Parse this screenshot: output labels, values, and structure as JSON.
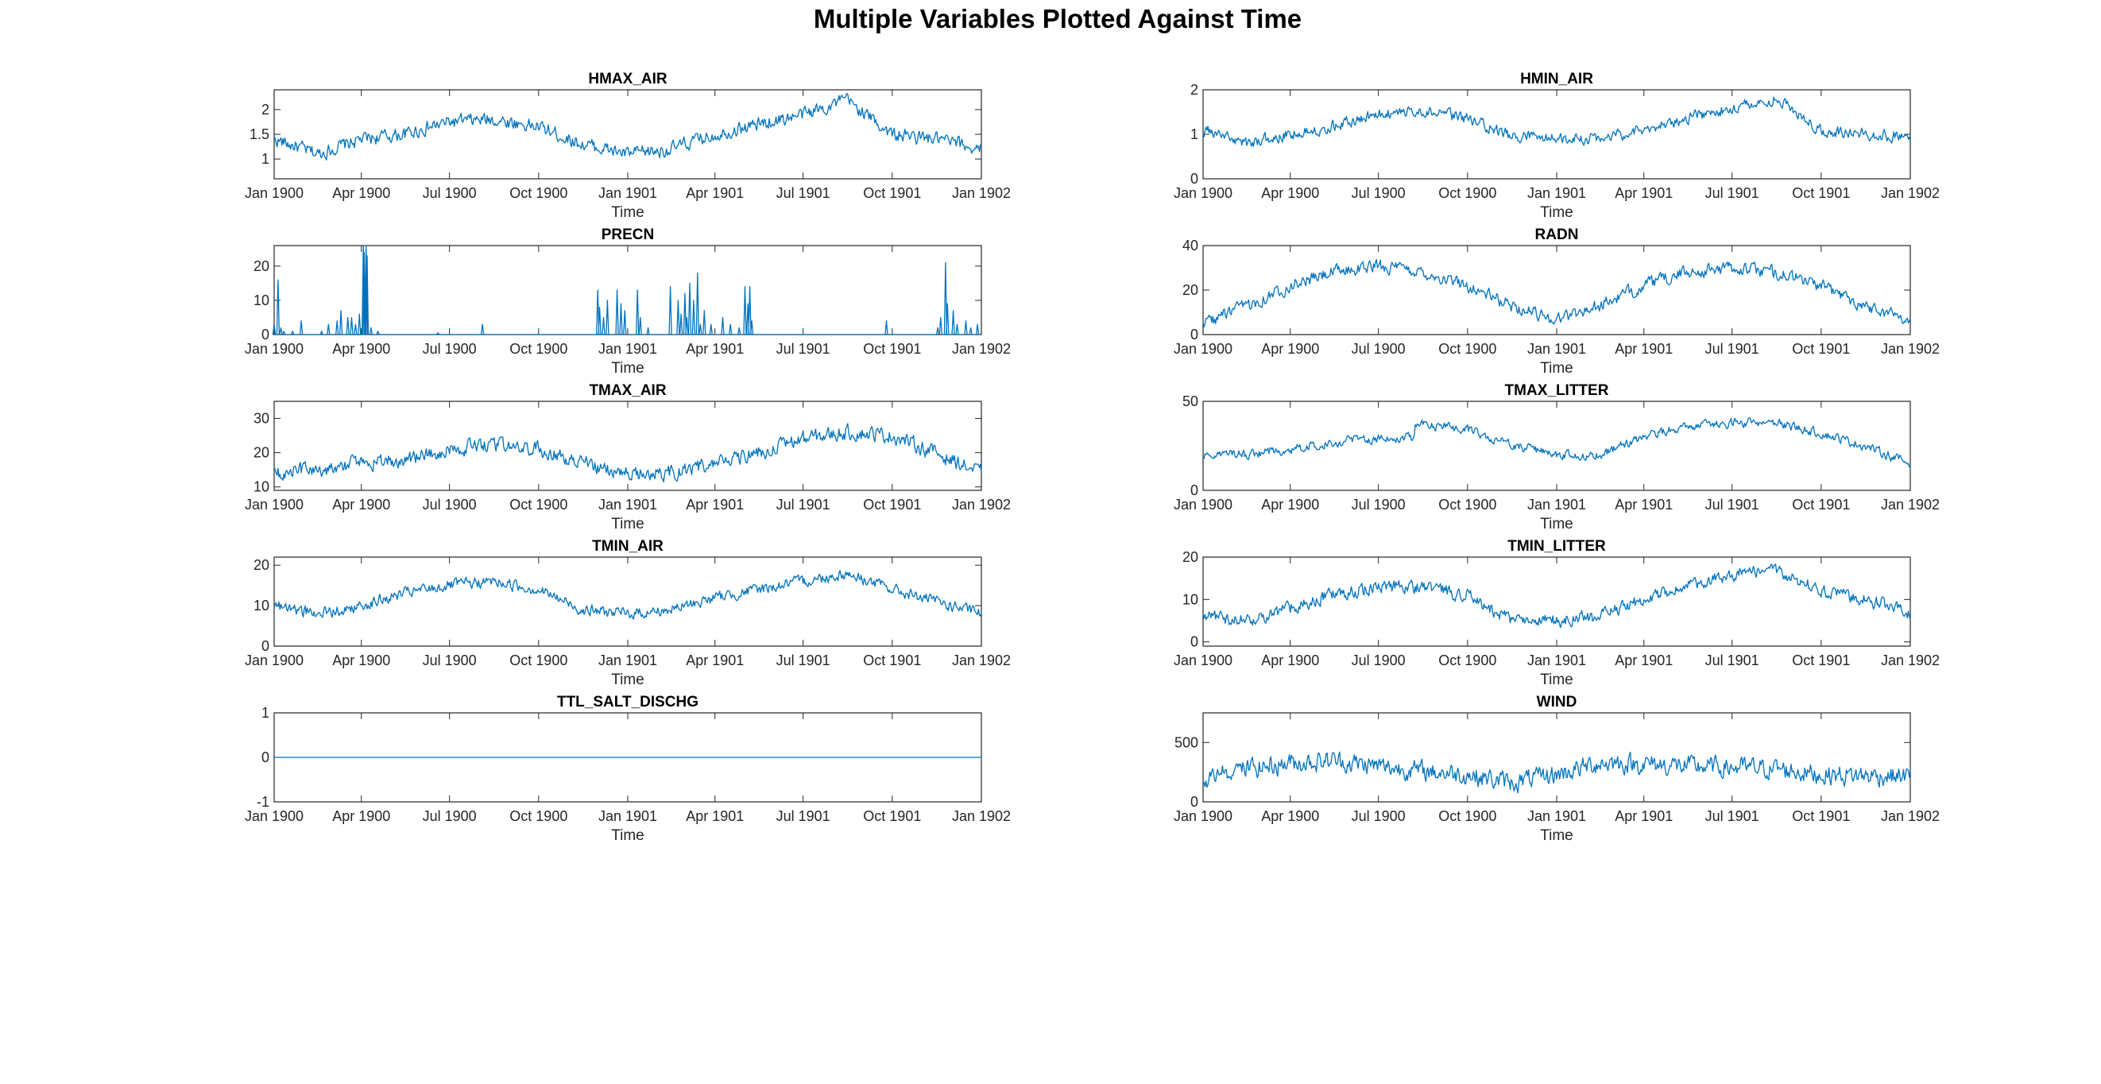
{
  "figure": {
    "title": "Multiple Variables Plotted Against Time",
    "line_color": "#0072BD"
  },
  "chart_data": [
    {
      "type": "line",
      "title": "HMAX_AIR",
      "xlabel": "Time",
      "ylabel": "",
      "x_range": [
        "1900-01-01",
        "1902-01-01"
      ],
      "x_ticks": [
        "Jan 1900",
        "Apr 1900",
        "Jul 1900",
        "Oct 1900",
        "Jan 1901",
        "Apr 1901",
        "Jul 1901",
        "Oct 1901",
        "Jan 1902"
      ],
      "ylim": [
        0.6,
        2.4
      ],
      "y_ticks": [
        1,
        1.5,
        2
      ],
      "y_tick_labels": [
        "1",
        "1.5",
        "2"
      ],
      "grid": false,
      "series": [
        {
          "x_dates": [
            "1900-01-01",
            "1900-02-15",
            "1900-04-01",
            "1900-05-15",
            "1900-07-01",
            "1900-08-15",
            "1900-10-01",
            "1900-11-15",
            "1901-01-01",
            "1901-02-15",
            "1901-04-01",
            "1901-05-15",
            "1901-07-01",
            "1901-08-15",
            "1901-10-01",
            "1901-11-15",
            "1902-01-01"
          ],
          "y": [
            1.4,
            1.1,
            1.4,
            1.5,
            1.75,
            1.8,
            1.65,
            1.3,
            1.1,
            1.2,
            1.5,
            1.7,
            1.9,
            2.2,
            1.5,
            1.4,
            1.2
          ],
          "noise": 0.22
        }
      ]
    },
    {
      "type": "line",
      "title": "HMIN_AIR",
      "xlabel": "Time",
      "ylabel": "",
      "x_range": [
        "1900-01-01",
        "1902-01-01"
      ],
      "x_ticks": [
        "Jan 1900",
        "Apr 1900",
        "Jul 1900",
        "Oct 1900",
        "Jan 1901",
        "Apr 1901",
        "Jul 1901",
        "Oct 1901",
        "Jan 1902"
      ],
      "ylim": [
        0,
        2
      ],
      "y_ticks": [
        0,
        1,
        2
      ],
      "y_tick_labels": [
        "0",
        "1",
        "2"
      ],
      "grid": false,
      "series": [
        {
          "x_dates": [
            "1900-01-01",
            "1900-02-15",
            "1900-04-01",
            "1900-05-15",
            "1900-07-01",
            "1900-08-15",
            "1900-10-01",
            "1900-11-15",
            "1901-01-01",
            "1901-02-15",
            "1901-04-01",
            "1901-05-15",
            "1901-07-01",
            "1901-08-15",
            "1901-10-01",
            "1901-11-15",
            "1902-01-01"
          ],
          "y": [
            1.1,
            0.8,
            1.0,
            1.2,
            1.45,
            1.55,
            1.35,
            0.95,
            0.9,
            0.9,
            1.1,
            1.35,
            1.6,
            1.8,
            1.1,
            1.0,
            0.95
          ],
          "noise": 0.2
        }
      ]
    },
    {
      "type": "line",
      "title": "PRECN",
      "xlabel": "Time",
      "ylabel": "",
      "x_range": [
        "1900-01-01",
        "1902-01-01"
      ],
      "x_ticks": [
        "Jan 1900",
        "Apr 1900",
        "Jul 1900",
        "Oct 1900",
        "Jan 1901",
        "Apr 1901",
        "Jul 1901",
        "Oct 1901",
        "Jan 1902"
      ],
      "ylim": [
        0,
        26
      ],
      "y_ticks": [
        0,
        10,
        20
      ],
      "y_tick_labels": [
        "0",
        "10",
        "20"
      ],
      "grid": false,
      "series": [
        {
          "baseline": 0,
          "x_dates": [
            "1900-01-01",
            "1900-01-05",
            "1900-01-08",
            "1900-01-11",
            "1900-01-20",
            "1900-01-29",
            "1900-02-19",
            "1900-02-26",
            "1900-03-07",
            "1900-03-11",
            "1900-03-18",
            "1900-03-22",
            "1900-03-26",
            "1900-03-30",
            "1900-04-03",
            "1900-04-04",
            "1900-04-06",
            "1900-04-07",
            "1900-04-11",
            "1900-04-18",
            "1900-06-19",
            "1900-08-04",
            "1900-12-01",
            "1900-12-03",
            "1900-12-07",
            "1900-12-11",
            "1900-12-21",
            "1900-12-25",
            "1900-12-29",
            "1901-01-11",
            "1901-01-14",
            "1901-01-22",
            "1901-02-14",
            "1901-02-22",
            "1901-02-25",
            "1901-03-01",
            "1901-03-03",
            "1901-03-06",
            "1901-03-10",
            "1901-03-14",
            "1901-03-17",
            "1901-03-21",
            "1901-03-28",
            "1901-04-09",
            "1901-04-17",
            "1901-04-26",
            "1901-05-02",
            "1901-05-05",
            "1901-05-07",
            "1901-05-09",
            "1901-09-25",
            "1901-11-17",
            "1901-11-20",
            "1901-11-25",
            "1901-11-27",
            "1901-12-03",
            "1901-12-07",
            "1901-12-16",
            "1901-12-21",
            "1901-12-28"
          ],
          "y": [
            3,
            16,
            2,
            1,
            1,
            4,
            1,
            3,
            4,
            7,
            5,
            5,
            3,
            6,
            26,
            24,
            26,
            23,
            2,
            1,
            0.5,
            3,
            13,
            8,
            5,
            10,
            13,
            9,
            7,
            13,
            5,
            2,
            14,
            10,
            6,
            12,
            5,
            15,
            10,
            18,
            3,
            7,
            3,
            5,
            3,
            2,
            14,
            9,
            14,
            4,
            4,
            2,
            5,
            21,
            9,
            7,
            3,
            4,
            2,
            3
          ]
        }
      ]
    },
    {
      "type": "line",
      "title": "RADN",
      "xlabel": "Time",
      "ylabel": "",
      "x_range": [
        "1900-01-01",
        "1902-01-01"
      ],
      "x_ticks": [
        "Jan 1900",
        "Apr 1900",
        "Jul 1900",
        "Oct 1900",
        "Jan 1901",
        "Apr 1901",
        "Jul 1901",
        "Oct 1901",
        "Jan 1902"
      ],
      "ylim": [
        0,
        40
      ],
      "y_ticks": [
        0,
        20,
        40
      ],
      "y_tick_labels": [
        "0",
        "20",
        "40"
      ],
      "grid": false,
      "series": [
        {
          "x_dates": [
            "1900-01-01",
            "1900-02-15",
            "1900-04-01",
            "1900-05-15",
            "1900-07-01",
            "1900-08-15",
            "1900-10-01",
            "1900-11-15",
            "1901-01-01",
            "1901-02-15",
            "1901-04-01",
            "1901-05-15",
            "1901-07-01",
            "1901-08-15",
            "1901-10-01",
            "1901-11-15",
            "1902-01-01"
          ],
          "y": [
            5,
            13,
            22,
            28,
            31,
            28,
            22,
            13,
            7,
            13,
            22,
            28,
            30,
            28,
            22,
            13,
            7
          ],
          "noise": 4.5
        }
      ]
    },
    {
      "type": "line",
      "title": "TMAX_AIR",
      "xlabel": "Time",
      "ylabel": "",
      "x_range": [
        "1900-01-01",
        "1902-01-01"
      ],
      "x_ticks": [
        "Jan 1900",
        "Apr 1900",
        "Jul 1900",
        "Oct 1900",
        "Jan 1901",
        "Apr 1901",
        "Jul 1901",
        "Oct 1901",
        "Jan 1902"
      ],
      "ylim": [
        9,
        35
      ],
      "y_ticks": [
        10,
        20,
        30
      ],
      "y_tick_labels": [
        "10",
        "20",
        "30"
      ],
      "grid": false,
      "series": [
        {
          "x_dates": [
            "1900-01-01",
            "1900-02-15",
            "1900-04-01",
            "1900-05-15",
            "1900-07-01",
            "1900-08-15",
            "1900-10-01",
            "1900-11-15",
            "1901-01-01",
            "1901-02-15",
            "1901-04-01",
            "1901-05-15",
            "1901-07-01",
            "1901-08-15",
            "1901-10-01",
            "1901-11-15",
            "1902-01-01"
          ],
          "y": [
            14,
            15,
            17,
            18,
            21,
            22,
            21,
            17,
            14,
            14,
            17,
            20,
            24,
            26,
            25,
            20,
            14
          ],
          "noise": 3.4
        }
      ]
    },
    {
      "type": "line",
      "title": "TMAX_LITTER",
      "xlabel": "Time",
      "ylabel": "",
      "x_range": [
        "1900-01-01",
        "1902-01-01"
      ],
      "x_ticks": [
        "Jan 1900",
        "Apr 1900",
        "Jul 1900",
        "Oct 1900",
        "Jan 1901",
        "Apr 1901",
        "Jul 1901",
        "Oct 1901",
        "Jan 1902"
      ],
      "ylim": [
        0,
        50
      ],
      "y_ticks": [
        0,
        50
      ],
      "y_tick_labels": [
        "0",
        "50"
      ],
      "grid": false,
      "series": [
        {
          "x_dates": [
            "1900-01-01",
            "1900-02-15",
            "1900-04-01",
            "1900-05-15",
            "1900-07-01",
            "1900-08-07",
            "1900-08-08",
            "1900-10-01",
            "1900-11-15",
            "1901-01-01",
            "1901-02-15",
            "1901-04-01",
            "1901-05-15",
            "1901-07-01",
            "1901-08-15",
            "1901-10-01",
            "1901-11-15",
            "1902-01-01"
          ],
          "y": [
            20,
            20,
            23,
            27,
            29,
            30,
            38,
            34,
            26,
            20,
            20,
            30,
            36,
            38,
            38,
            32,
            25,
            15
          ],
          "noise": 4
        }
      ]
    },
    {
      "type": "line",
      "title": "TMIN_AIR",
      "xlabel": "Time",
      "ylabel": "",
      "x_range": [
        "1900-01-01",
        "1902-01-01"
      ],
      "x_ticks": [
        "Jan 1900",
        "Apr 1900",
        "Jul 1900",
        "Oct 1900",
        "Jan 1901",
        "Apr 1901",
        "Jul 1901",
        "Oct 1901",
        "Jan 1902"
      ],
      "ylim": [
        0,
        22
      ],
      "y_ticks": [
        0,
        10,
        20
      ],
      "y_tick_labels": [
        "0",
        "10",
        "20"
      ],
      "grid": false,
      "series": [
        {
          "x_dates": [
            "1900-01-01",
            "1900-02-15",
            "1900-04-01",
            "1900-05-15",
            "1900-07-01",
            "1900-08-15",
            "1900-10-01",
            "1900-11-15",
            "1901-01-01",
            "1901-02-15",
            "1901-04-01",
            "1901-05-15",
            "1901-07-01",
            "1901-08-15",
            "1901-10-01",
            "1901-11-15",
            "1902-01-01"
          ],
          "y": [
            10,
            8,
            10,
            13,
            15,
            16,
            14,
            9,
            8,
            9,
            12,
            14,
            16,
            18,
            14,
            11,
            8
          ],
          "noise": 2.2
        }
      ]
    },
    {
      "type": "line",
      "title": "TMIN_LITTER",
      "xlabel": "Time",
      "ylabel": "",
      "x_range": [
        "1900-01-01",
        "1902-01-01"
      ],
      "x_ticks": [
        "Jan 1900",
        "Apr 1900",
        "Jul 1900",
        "Oct 1900",
        "Jan 1901",
        "Apr 1901",
        "Jul 1901",
        "Oct 1901",
        "Jan 1902"
      ],
      "ylim": [
        -1,
        20
      ],
      "y_ticks": [
        0,
        10,
        20
      ],
      "y_tick_labels": [
        "0",
        "10",
        "20"
      ],
      "grid": false,
      "series": [
        {
          "x_dates": [
            "1900-01-01",
            "1900-02-15",
            "1900-04-01",
            "1900-05-15",
            "1900-07-01",
            "1900-08-15",
            "1900-10-01",
            "1900-11-15",
            "1901-01-01",
            "1901-02-15",
            "1901-04-01",
            "1901-05-15",
            "1901-07-01",
            "1901-08-15",
            "1901-10-01",
            "1901-11-15",
            "1902-01-01"
          ],
          "y": [
            6,
            5,
            8,
            11,
            13,
            13,
            11,
            5,
            5,
            6,
            10,
            13,
            16,
            17,
            12,
            10,
            7
          ],
          "noise": 2.4
        }
      ]
    },
    {
      "type": "line",
      "title": "TTL_SALT_DISCHG",
      "xlabel": "Time",
      "ylabel": "",
      "x_range": [
        "1900-01-01",
        "1902-01-01"
      ],
      "x_ticks": [
        "Jan 1900",
        "Apr 1900",
        "Jul 1900",
        "Oct 1900",
        "Jan 1901",
        "Apr 1901",
        "Jul 1901",
        "Oct 1901",
        "Jan 1902"
      ],
      "ylim": [
        -1,
        1
      ],
      "y_ticks": [
        -1,
        0,
        1
      ],
      "y_tick_labels": [
        "-1",
        "0",
        "1"
      ],
      "grid": false,
      "series": [
        {
          "x_dates": [
            "1900-01-01",
            "1902-01-01"
          ],
          "y": [
            0,
            0
          ]
        }
      ]
    },
    {
      "type": "line",
      "title": "WIND",
      "xlabel": "Time",
      "ylabel": "",
      "x_range": [
        "1900-01-01",
        "1902-01-01"
      ],
      "x_ticks": [
        "Jan 1900",
        "Apr 1900",
        "Jul 1900",
        "Oct 1900",
        "Jan 1901",
        "Apr 1901",
        "Jul 1901",
        "Oct 1901",
        "Jan 1902"
      ],
      "ylim": [
        0,
        750
      ],
      "y_ticks": [
        0,
        500
      ],
      "y_tick_labels": [
        "0",
        "500"
      ],
      "grid": false,
      "series": [
        {
          "x_dates": [
            "1900-01-01",
            "1900-02-15",
            "1900-04-01",
            "1900-05-15",
            "1900-07-01",
            "1900-08-15",
            "1900-10-01",
            "1900-11-15",
            "1901-01-01",
            "1901-02-15",
            "1901-04-01",
            "1901-05-15",
            "1901-07-01",
            "1901-08-15",
            "1901-10-01",
            "1901-11-15",
            "1902-01-01"
          ],
          "y": [
            200,
            280,
            330,
            350,
            300,
            260,
            230,
            160,
            230,
            330,
            320,
            300,
            290,
            280,
            230,
            220,
            220
          ],
          "noise": 130
        }
      ]
    }
  ]
}
